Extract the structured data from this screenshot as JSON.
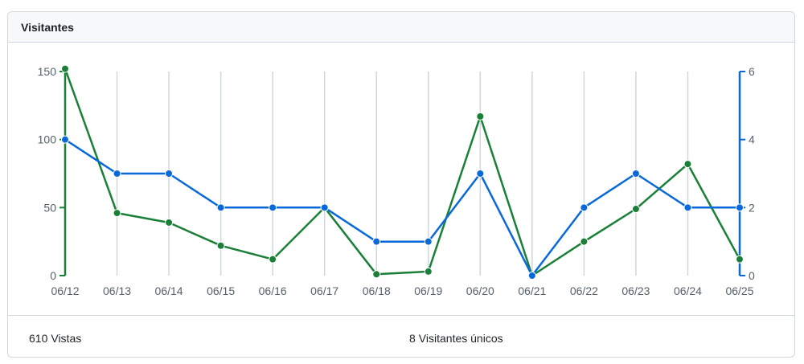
{
  "panel": {
    "title": "Visitantes"
  },
  "footer": {
    "views_count": "610",
    "views_label": "Vistas",
    "uniques_count": "8",
    "uniques_label": "Visitantes únicos"
  },
  "colors": {
    "views": "#1a7f37",
    "uniques": "#0969da",
    "grid": "#d0d7de"
  },
  "chart_data": {
    "type": "line",
    "categories": [
      "06/12",
      "06/13",
      "06/14",
      "06/15",
      "06/16",
      "06/17",
      "06/18",
      "06/19",
      "06/20",
      "06/21",
      "06/22",
      "06/23",
      "06/24",
      "06/25"
    ],
    "series": [
      {
        "axis": "left",
        "values": [
          152,
          46,
          39,
          22,
          12,
          50,
          1,
          3,
          117,
          0,
          25,
          49,
          82,
          12
        ]
      },
      {
        "axis": "right",
        "values": [
          4,
          3,
          3,
          2,
          2,
          2,
          1,
          1,
          3,
          0,
          2,
          3,
          2,
          2
        ]
      }
    ],
    "y_left": {
      "min": 0,
      "max": 150,
      "ticks": [
        0,
        50,
        100,
        150
      ]
    },
    "y_right": {
      "min": 0,
      "max": 6,
      "ticks": [
        0,
        2,
        4,
        6
      ]
    },
    "grid": "vertical"
  }
}
